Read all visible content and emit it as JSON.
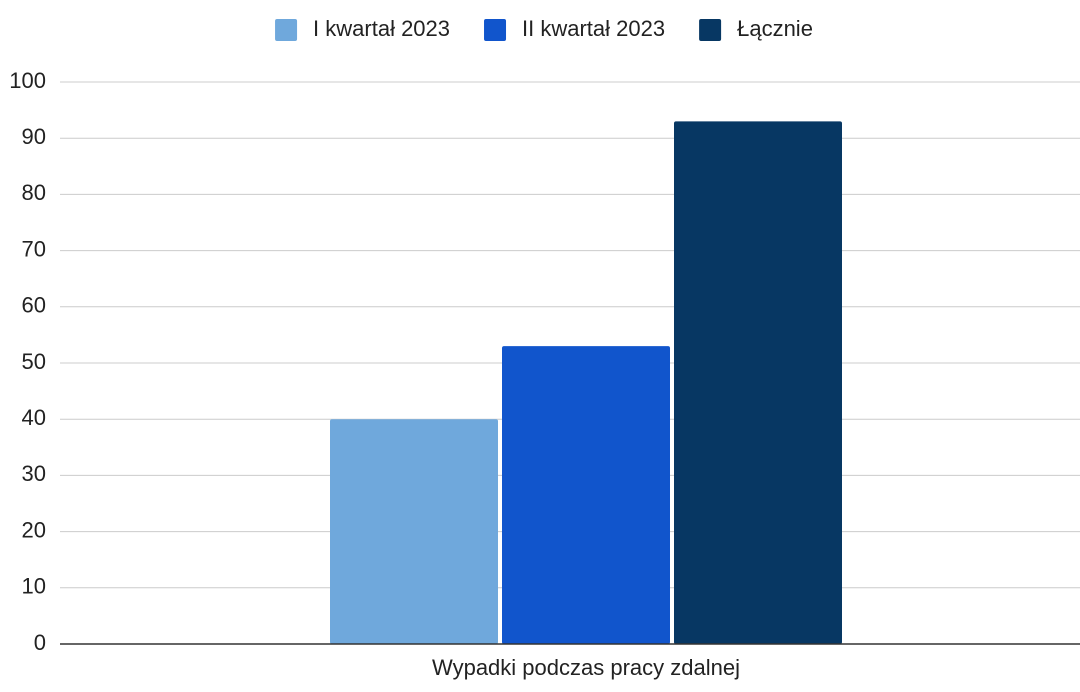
{
  "chart_data": {
    "type": "bar",
    "categories": [
      "Wypadki podczas pracy zdalnej"
    ],
    "series": [
      {
        "name": "I kwartał 2023",
        "color": "#6fa8dc",
        "values": [
          40
        ]
      },
      {
        "name": "II kwartał 2023",
        "color": "#1155cc",
        "values": [
          53
        ]
      },
      {
        "name": "Łącznie",
        "color": "#073763",
        "values": [
          93
        ]
      }
    ],
    "ylim": [
      0,
      100
    ],
    "yticks": [
      0,
      10,
      20,
      30,
      40,
      50,
      60,
      70,
      80,
      90,
      100
    ],
    "grid": true,
    "legend": "top"
  }
}
